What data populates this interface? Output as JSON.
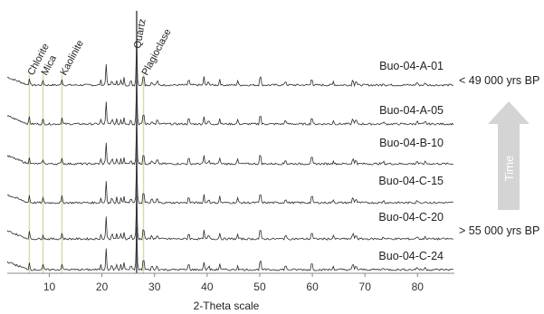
{
  "chart_data": {
    "type": "line",
    "title": "",
    "xlabel": "2-Theta scale",
    "ylabel": "",
    "xlim": [
      2,
      87
    ],
    "x_ticks": [
      10,
      20,
      30,
      40,
      50,
      60,
      70,
      80
    ],
    "grid": false,
    "reference_lines": [
      {
        "name": "Chlorite",
        "x": 6.2
      },
      {
        "name": "Mica",
        "x": 8.8
      },
      {
        "name": "Kaolinite",
        "x": 12.4
      },
      {
        "name": "Quartz",
        "x": 26.6
      },
      {
        "name": "Plagioclase",
        "x": 27.9
      }
    ],
    "peaks": [
      {
        "x": 6.2,
        "h": 8
      },
      {
        "x": 8.8,
        "h": 5
      },
      {
        "x": 12.4,
        "h": 7
      },
      {
        "x": 19.8,
        "h": 5
      },
      {
        "x": 20.8,
        "h": 24
      },
      {
        "x": 21.9,
        "h": 7
      },
      {
        "x": 22.8,
        "h": 6
      },
      {
        "x": 23.6,
        "h": 5
      },
      {
        "x": 24.2,
        "h": 8
      },
      {
        "x": 25.5,
        "h": 6
      },
      {
        "x": 26.6,
        "h": 48
      },
      {
        "x": 27.9,
        "h": 16
      },
      {
        "x": 29.5,
        "h": 5
      },
      {
        "x": 30.5,
        "h": 6
      },
      {
        "x": 36.5,
        "h": 8
      },
      {
        "x": 39.4,
        "h": 9
      },
      {
        "x": 40.3,
        "h": 5
      },
      {
        "x": 42.4,
        "h": 7
      },
      {
        "x": 45.8,
        "h": 5
      },
      {
        "x": 50.1,
        "h": 14
      },
      {
        "x": 54.9,
        "h": 6
      },
      {
        "x": 59.9,
        "h": 10
      },
      {
        "x": 64.0,
        "h": 4
      },
      {
        "x": 67.7,
        "h": 8
      },
      {
        "x": 68.3,
        "h": 6
      },
      {
        "x": 73.5,
        "h": 3
      },
      {
        "x": 79.9,
        "h": 4
      },
      {
        "x": 81.5,
        "h": 3
      }
    ],
    "series": [
      {
        "name": "Buo-04-A-01",
        "age_label": "< 49 000 yrs BP"
      },
      {
        "name": "Buo-04-A-05",
        "age_label": ""
      },
      {
        "name": "Buo-04-B-10",
        "age_label": ""
      },
      {
        "name": "Buo-04-C-15",
        "age_label": ""
      },
      {
        "name": "Buo-04-C-20",
        "age_label": "> 55 000 yrs BP"
      },
      {
        "name": "Buo-04-C-24",
        "age_label": ""
      }
    ]
  },
  "time_arrow": {
    "label": "Time",
    "fill": "#d4d4d4"
  },
  "colors": {
    "trace": "#2b2b2b",
    "reference": "#d9d9a8",
    "quartz": "#555555"
  }
}
